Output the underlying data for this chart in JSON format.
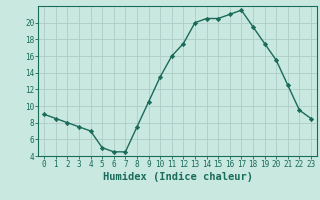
{
  "x": [
    0,
    1,
    2,
    3,
    4,
    5,
    6,
    7,
    8,
    9,
    10,
    11,
    12,
    13,
    14,
    15,
    16,
    17,
    18,
    19,
    20,
    21,
    22,
    23
  ],
  "y": [
    9.0,
    8.5,
    8.0,
    7.5,
    7.0,
    5.0,
    4.5,
    4.5,
    7.5,
    10.5,
    13.5,
    16.0,
    17.5,
    20.0,
    20.5,
    20.5,
    21.0,
    21.5,
    19.5,
    17.5,
    15.5,
    12.5,
    9.5,
    8.5
  ],
  "line_color": "#1a6b5a",
  "marker": "D",
  "marker_size": 2.2,
  "bg_color": "#c8e8e0",
  "grid_color": "#b0ccc8",
  "xlabel": "Humidex (Indice chaleur)",
  "ylim": [
    4,
    22
  ],
  "xlim": [
    -0.5,
    23.5
  ],
  "yticks": [
    4,
    6,
    8,
    10,
    12,
    14,
    16,
    18,
    20
  ],
  "xticks": [
    0,
    1,
    2,
    3,
    4,
    5,
    6,
    7,
    8,
    9,
    10,
    11,
    12,
    13,
    14,
    15,
    16,
    17,
    18,
    19,
    20,
    21,
    22,
    23
  ],
  "tick_label_fontsize": 5.5,
  "xlabel_fontsize": 7.5,
  "line_width": 1.0,
  "spine_color": "#1a6b5a",
  "tick_color": "#1a6b5a"
}
